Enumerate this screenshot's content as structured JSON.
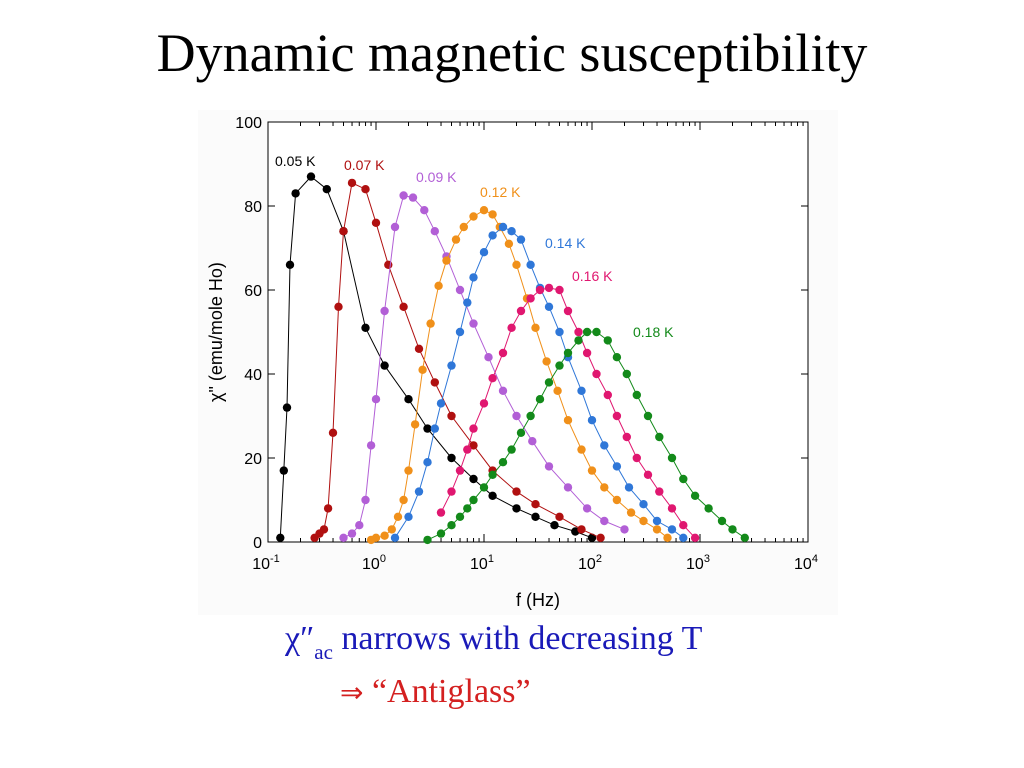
{
  "slide": {
    "title": "Dynamic magnetic susceptibility",
    "caption_line1_symbol": "χ″",
    "caption_line1_sub": "ac",
    "caption_line1_text": " narrows with decreasing T",
    "caption_line2_arrow": "⇒",
    "caption_line2_text": " “Antiglass”"
  },
  "chart_data": {
    "type": "scatter",
    "title": "",
    "xlabel": "f (Hz)",
    "ylabel": "χ\" (emu/mole Ho)",
    "xscale": "log",
    "xlim": [
      0.1,
      10000
    ],
    "ylim": [
      0,
      100
    ],
    "x_ticks": [
      {
        "base": "10",
        "exp": "-1",
        "value": 0.1
      },
      {
        "base": "10",
        "exp": "0",
        "value": 1
      },
      {
        "base": "10",
        "exp": "1",
        "value": 10
      },
      {
        "base": "10",
        "exp": "2",
        "value": 100
      },
      {
        "base": "10",
        "exp": "3",
        "value": 1000
      },
      {
        "base": "10",
        "exp": "4",
        "value": 10000
      }
    ],
    "y_ticks": [
      "0",
      "20",
      "40",
      "60",
      "80",
      "100"
    ],
    "series": [
      {
        "name": "0.05 K",
        "color": "#000000",
        "x": [
          0.13,
          0.14,
          0.15,
          0.16,
          0.18,
          0.25,
          0.35,
          0.5,
          0.8,
          1.2,
          2,
          3,
          5,
          8,
          12,
          20,
          30,
          45,
          70,
          100
        ],
        "y": [
          1,
          17,
          32,
          66,
          83,
          87,
          84,
          74,
          51,
          42,
          34,
          27,
          20,
          15,
          11,
          8,
          6,
          4,
          2.5,
          1
        ]
      },
      {
        "name": "0.07 K",
        "color": "#b01010",
        "x": [
          0.27,
          0.3,
          0.33,
          0.36,
          0.4,
          0.45,
          0.5,
          0.6,
          0.8,
          1,
          1.3,
          1.8,
          2.5,
          3.5,
          5,
          8,
          12,
          20,
          30,
          50,
          80,
          120
        ],
        "y": [
          1,
          2,
          3,
          8,
          26,
          56,
          74,
          85.5,
          84,
          76,
          66,
          56,
          46,
          38,
          30,
          23,
          17,
          12,
          9,
          6,
          3,
          1
        ]
      },
      {
        "name": "0.09 K",
        "color": "#b25fd6",
        "x": [
          0.5,
          0.6,
          0.7,
          0.8,
          0.9,
          1,
          1.2,
          1.5,
          1.8,
          2.2,
          2.8,
          3.5,
          4.5,
          6,
          8,
          11,
          15,
          20,
          28,
          40,
          60,
          90,
          130,
          200
        ],
        "y": [
          1,
          2,
          4,
          10,
          23,
          34,
          55,
          75,
          82.5,
          82,
          79,
          74,
          68,
          60,
          52,
          44,
          36,
          30,
          24,
          18,
          13,
          8,
          5,
          3
        ]
      },
      {
        "name": "0.12 K",
        "color": "#f0901a",
        "x": [
          0.9,
          1,
          1.2,
          1.4,
          1.6,
          1.8,
          2,
          2.3,
          2.7,
          3.2,
          3.8,
          4.5,
          5.5,
          6.5,
          8,
          10,
          12,
          14,
          17,
          20,
          25,
          30,
          38,
          48,
          60,
          80,
          100,
          130,
          170,
          230,
          300,
          400,
          500
        ],
        "y": [
          0.5,
          1,
          1.5,
          3,
          6,
          10,
          17,
          28,
          41,
          52,
          61,
          67,
          72,
          75,
          77.5,
          79,
          78,
          75,
          71,
          66,
          58,
          51,
          43,
          36,
          29,
          22,
          17,
          13,
          10,
          7,
          5,
          3,
          1
        ]
      },
      {
        "name": "0.14 K",
        "color": "#2f77d8",
        "x": [
          1.5,
          2,
          2.5,
          3,
          3.5,
          4,
          5,
          6,
          7,
          8,
          10,
          12,
          15,
          18,
          22,
          27,
          33,
          40,
          50,
          60,
          80,
          100,
          130,
          170,
          220,
          300,
          400,
          550,
          700
        ],
        "y": [
          1,
          6,
          12,
          19,
          27,
          33,
          42,
          50,
          57,
          63,
          69,
          73,
          75,
          74,
          72,
          66,
          60.5,
          56,
          50,
          44,
          36,
          29,
          23,
          18,
          13,
          9,
          5,
          3,
          1
        ]
      },
      {
        "name": "0.16 K",
        "color": "#e01770",
        "x": [
          4,
          5,
          6,
          7,
          8,
          10,
          12,
          15,
          18,
          22,
          27,
          33,
          40,
          50,
          60,
          75,
          90,
          110,
          140,
          170,
          210,
          260,
          330,
          420,
          550,
          700,
          900
        ],
        "y": [
          7,
          12,
          17,
          22,
          27,
          33,
          39,
          45,
          51,
          55,
          58,
          60,
          60.5,
          60,
          55,
          50,
          45,
          40,
          35,
          30,
          25,
          20,
          16,
          12,
          8,
          4,
          1
        ]
      },
      {
        "name": "0.18 K",
        "color": "#138a1a",
        "x": [
          3,
          4,
          5,
          6,
          7,
          8,
          10,
          12,
          15,
          18,
          22,
          27,
          33,
          40,
          50,
          60,
          75,
          90,
          110,
          140,
          170,
          210,
          260,
          330,
          420,
          550,
          700,
          900,
          1200,
          1600,
          2000,
          2600
        ],
        "y": [
          0.5,
          2,
          4,
          6,
          8,
          10,
          13,
          16,
          19,
          22,
          26,
          30,
          34,
          38,
          42,
          45,
          48,
          50,
          50,
          48,
          44,
          40,
          35,
          30,
          25,
          20,
          15,
          11,
          8,
          5,
          3,
          1
        ]
      }
    ]
  }
}
